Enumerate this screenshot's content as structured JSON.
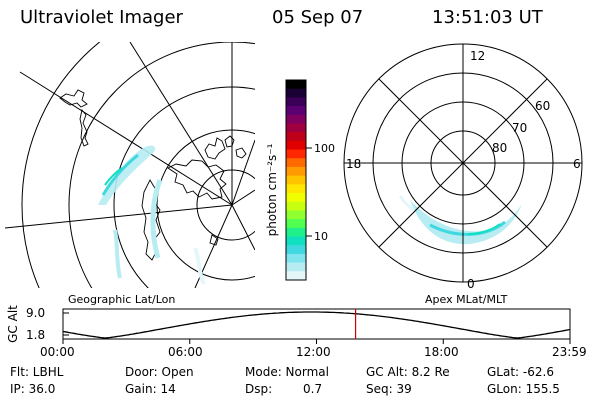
{
  "header": {
    "instrument": "Ultraviolet Imager",
    "date": "05 Sep 07",
    "time": "13:51:03 UT"
  },
  "geo_panel": {
    "caption": "Geographic Lat/Lon"
  },
  "colorbar": {
    "unit_label": "photon cm⁻²s⁻¹",
    "ticks": [
      "100",
      "10"
    ],
    "colors": [
      "#000000",
      "#1a0033",
      "#3a0058",
      "#5a0070",
      "#800060",
      "#a00040",
      "#c00018",
      "#e00000",
      "#ff2800",
      "#ff6a00",
      "#ff9a00",
      "#ffc400",
      "#ffe600",
      "#f0ff00",
      "#c8ff10",
      "#90ff30",
      "#50ff50",
      "#20f08a",
      "#10e0c0",
      "#40d8e0",
      "#80e4ee",
      "#b6ecf2",
      "#e4f6fa"
    ]
  },
  "polar_panel": {
    "caption": "Apex MLat/MLT",
    "mlt_labels": {
      "top": "12",
      "left": "18",
      "right": "6",
      "bottom": "0"
    },
    "lat_labels": [
      "80",
      "70",
      "60"
    ]
  },
  "altitude_strip": {
    "axis_label": "GC Alt",
    "y_ticks": [
      "9.0",
      "1.8"
    ],
    "x_ticks": [
      "00:00",
      "06:00",
      "12:00",
      "18:00",
      "23:59"
    ],
    "current_time_hours": 13.85,
    "line_color": "#cc0000"
  },
  "info": {
    "flt": "Flt: LBHL",
    "door": "Door: Open",
    "mode": "Mode: Normal",
    "gc_alt": "GC Alt: 8.2 Re",
    "glat": "GLat: -62.6",
    "ip": "IP: 36.0",
    "gain": "Gain: 14",
    "dsp_label": "Dsp:",
    "dsp_value": "0.7",
    "seq": "Seq: 39",
    "glon": "GLon: 155.5"
  }
}
